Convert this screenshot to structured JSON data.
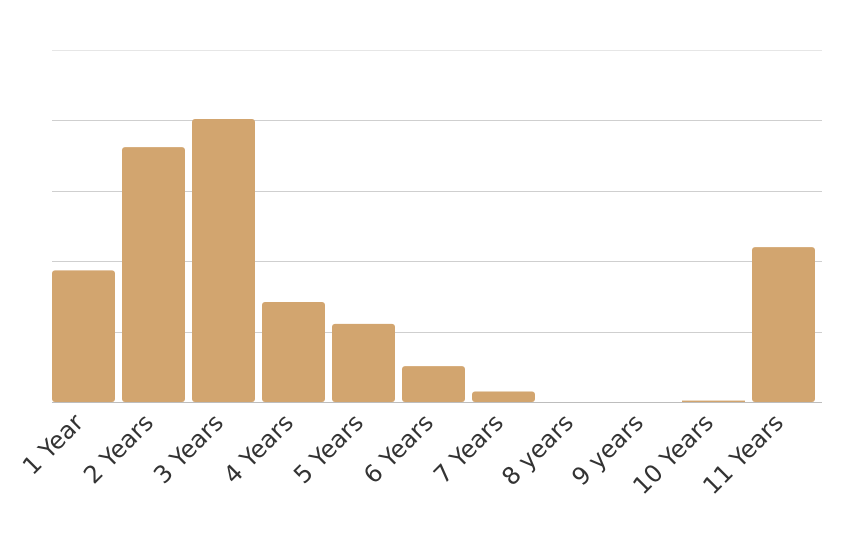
{
  "chart_data": {
    "type": "bar",
    "title": "",
    "xlabel": "",
    "ylabel": "",
    "categories": [
      "1 Year",
      "2 Years",
      "3 Years",
      "4 Years",
      "5 Years",
      "6 Years",
      "7 Years",
      "8 years",
      "9 years",
      "10 Years",
      "11 Years"
    ],
    "values": [
      1.87,
      3.62,
      4.02,
      1.42,
      1.11,
      0.51,
      0.15,
      0,
      0,
      0.02,
      2.2
    ],
    "ylim": [
      0,
      5
    ],
    "gridlines": [
      1,
      2,
      3,
      4,
      5
    ],
    "grid": true,
    "legend": "none",
    "show_y_tick_labels": false,
    "bar_color": "#d2a56f"
  }
}
